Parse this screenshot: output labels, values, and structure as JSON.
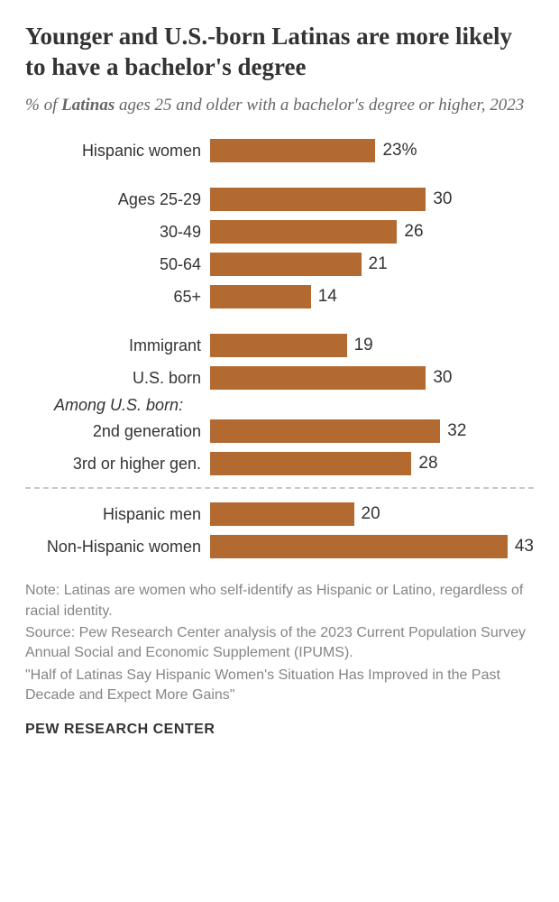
{
  "title": "Younger and U.S.-born Latinas are more likely to have a bachelor's degree",
  "subtitle_pre": "% of ",
  "subtitle_emph": "Latinas",
  "subtitle_post": " ages 25 and older with a bachelor's degree or higher, 2023",
  "chart": {
    "bar_color": "#b36a31",
    "text_color": "#333333",
    "label_fontsize": 18,
    "value_fontsize": 19,
    "max_value": 45,
    "percent_suffix_first": "%",
    "groups": [
      {
        "rows": [
          {
            "label": "Hispanic women",
            "value": 23,
            "show_pct": true
          }
        ]
      },
      {
        "rows": [
          {
            "label": "Ages 25-29",
            "value": 30
          },
          {
            "label": "30-49",
            "value": 26
          },
          {
            "label": "50-64",
            "value": 21
          },
          {
            "label": "65+",
            "value": 14
          }
        ]
      },
      {
        "rows": [
          {
            "label": "Immigrant",
            "value": 19
          },
          {
            "label": "U.S. born",
            "value": 30
          }
        ],
        "subhead": "Among U.S. born:",
        "subrows": [
          {
            "label": "2nd generation",
            "value": 32
          },
          {
            "label": "3rd or higher gen.",
            "value": 28
          }
        ]
      }
    ],
    "comparison": [
      {
        "label": "Hispanic men",
        "value": 20
      },
      {
        "label": "Non-Hispanic women",
        "value": 43
      }
    ]
  },
  "note_1": "Note: Latinas are women who self-identify as Hispanic or Latino, regardless of racial identity.",
  "note_2": "Source: Pew Research Center analysis of the 2023 Current Population Survey Annual Social and Economic Supplement (IPUMS).",
  "note_3": "\"Half of Latinas Say Hispanic Women's Situation Has Improved in the Past Decade and Expect More Gains\"",
  "brand": "PEW RESEARCH CENTER",
  "typography": {
    "title_fontsize": 27,
    "subtitle_fontsize": 19,
    "note_fontsize": 16,
    "brand_fontsize": 16
  }
}
